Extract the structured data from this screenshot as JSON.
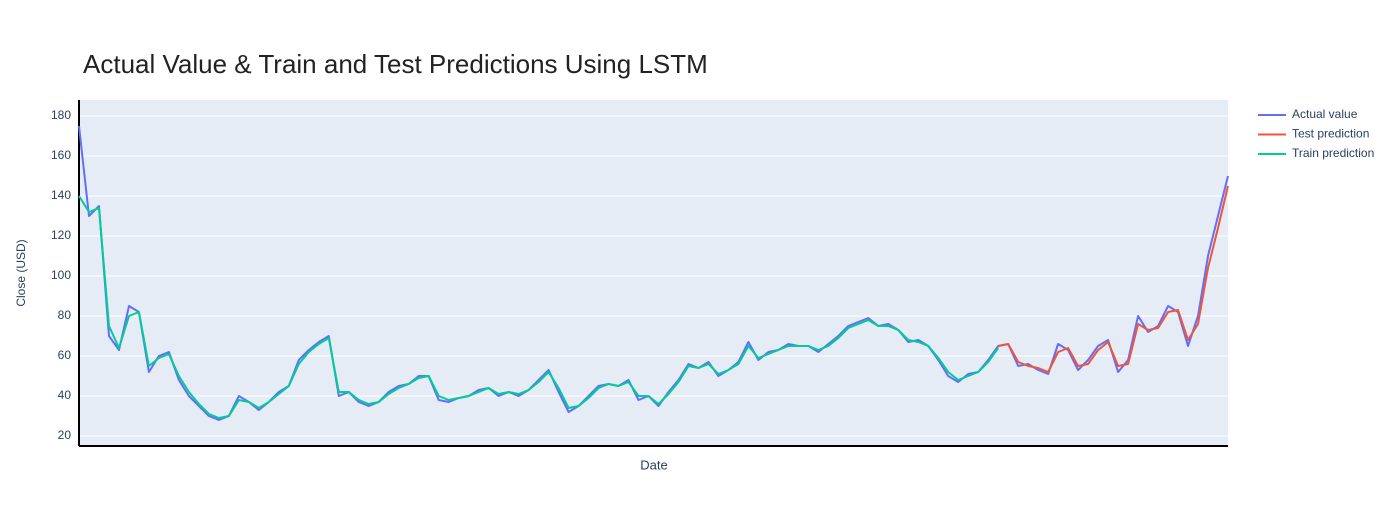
{
  "chart_data": {
    "type": "line",
    "title": "Actual Value & Train and Test Predictions Using LSTM",
    "x_label": "Date",
    "y_label": "Close (USD)",
    "ylim": [
      15,
      188
    ],
    "yticks": [
      20,
      40,
      60,
      80,
      100,
      120,
      140,
      160,
      180
    ],
    "grid": true,
    "legend": "top-right",
    "series": [
      {
        "name": "Actual value",
        "color": "#636efa",
        "values": [
          175,
          130,
          135,
          70,
          63,
          85,
          82,
          52,
          60,
          62,
          48,
          40,
          35,
          30,
          28,
          30,
          40,
          37,
          33,
          37,
          42,
          45,
          58,
          63,
          67,
          70,
          40,
          42,
          37,
          35,
          37,
          42,
          45,
          46,
          50,
          50,
          38,
          37,
          39,
          40,
          43,
          44,
          40,
          42,
          40,
          43,
          48,
          53,
          42,
          32,
          35,
          40,
          45,
          46,
          45,
          48,
          38,
          40,
          35,
          42,
          48,
          56,
          54,
          57,
          50,
          53,
          57,
          67,
          58,
          62,
          63,
          66,
          65,
          65,
          62,
          66,
          70,
          75,
          77,
          79,
          75,
          76,
          73,
          67,
          68,
          65,
          58,
          50,
          47,
          51,
          52,
          58,
          65,
          66,
          55,
          56,
          53,
          51,
          66,
          63,
          53,
          58,
          65,
          68,
          52,
          58,
          80,
          72,
          75,
          85,
          82,
          65,
          80,
          110,
          130,
          150
        ]
      },
      {
        "name": "Test prediction",
        "color": "#ef553b",
        "values": [
          null,
          null,
          null,
          null,
          null,
          null,
          null,
          null,
          null,
          null,
          null,
          null,
          null,
          null,
          null,
          null,
          null,
          null,
          null,
          null,
          null,
          null,
          null,
          null,
          null,
          null,
          null,
          null,
          null,
          null,
          null,
          null,
          null,
          null,
          null,
          null,
          null,
          null,
          null,
          null,
          null,
          null,
          null,
          null,
          null,
          null,
          null,
          null,
          null,
          null,
          null,
          null,
          null,
          null,
          null,
          null,
          null,
          null,
          null,
          null,
          null,
          null,
          null,
          null,
          null,
          null,
          null,
          null,
          null,
          null,
          null,
          null,
          null,
          null,
          null,
          null,
          null,
          null,
          null,
          null,
          null,
          null,
          null,
          null,
          null,
          null,
          null,
          null,
          null,
          null,
          null,
          null,
          65,
          66,
          57,
          55,
          54,
          52,
          62,
          64,
          55,
          56,
          63,
          67,
          55,
          56,
          76,
          73,
          74,
          82,
          83,
          68,
          76,
          104,
          124,
          145
        ]
      },
      {
        "name": "Train prediction",
        "color": "#00cc96",
        "values": [
          140,
          132,
          134,
          75,
          64,
          80,
          82,
          55,
          59,
          61,
          50,
          42,
          36,
          31,
          29,
          30,
          38,
          37,
          34,
          37,
          41,
          45,
          56,
          62,
          66,
          69,
          42,
          42,
          38,
          36,
          37,
          41,
          44,
          46,
          49,
          50,
          40,
          38,
          39,
          40,
          42,
          44,
          41,
          42,
          41,
          43,
          47,
          52,
          44,
          34,
          35,
          39,
          44,
          46,
          45,
          47,
          40,
          40,
          36,
          41,
          47,
          55,
          54,
          56,
          51,
          53,
          56,
          65,
          59,
          61,
          63,
          65,
          65,
          65,
          63,
          65,
          69,
          74,
          76,
          78,
          75,
          75,
          73,
          68,
          67,
          65,
          59,
          52,
          48,
          50,
          52,
          57,
          64,
          null,
          null,
          null,
          null,
          null,
          null,
          null,
          null,
          null,
          null,
          null,
          null,
          null,
          null,
          null,
          null,
          null,
          null,
          null,
          null,
          null,
          null,
          null
        ]
      }
    ]
  }
}
